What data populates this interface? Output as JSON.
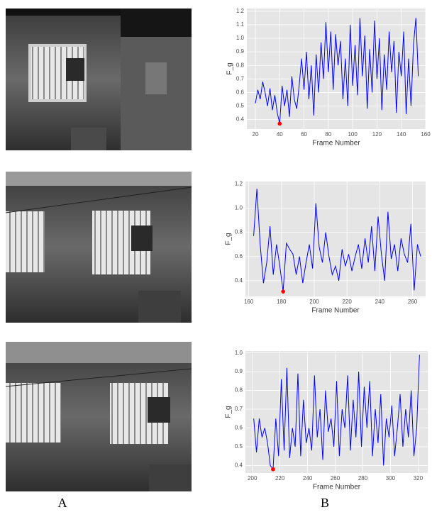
{
  "panel_labels": [
    "A",
    "B"
  ],
  "chart_data": [
    {
      "type": "line",
      "xlabel": "Frame Number",
      "ylabel": "F_g",
      "color": "#0000ff",
      "grid": true,
      "xlim": [
        13,
        160
      ],
      "ylim": [
        0.33,
        1.22
      ],
      "xticks": [
        20,
        40,
        60,
        80,
        100,
        120,
        140,
        160
      ],
      "yticks": [
        0.4,
        0.5,
        0.6,
        0.7,
        0.8,
        0.9,
        {
          "value": 1,
          "label": "1.0"
        },
        1.1,
        1.2
      ],
      "x": [
        20,
        22,
        24,
        26,
        28,
        30,
        32,
        34,
        36,
        38,
        40,
        42,
        44,
        46,
        48,
        50,
        52,
        54,
        56,
        58,
        60,
        62,
        64,
        66,
        68,
        70,
        72,
        74,
        76,
        78,
        80,
        82,
        84,
        86,
        88,
        90,
        92,
        94,
        96,
        98,
        100,
        102,
        104,
        106,
        108,
        110,
        112,
        114,
        116,
        118,
        120,
        122,
        124,
        126,
        128,
        130,
        132,
        134,
        136,
        138,
        140,
        142,
        144,
        146,
        148,
        150,
        152,
        154
      ],
      "values": [
        0.52,
        0.62,
        0.55,
        0.68,
        0.6,
        0.5,
        0.63,
        0.47,
        0.58,
        0.45,
        0.37,
        0.65,
        0.5,
        0.62,
        0.42,
        0.72,
        0.55,
        0.48,
        0.65,
        0.85,
        0.62,
        0.9,
        0.55,
        0.8,
        0.43,
        0.88,
        0.6,
        0.97,
        0.7,
        1.12,
        0.75,
        1.05,
        0.62,
        1.03,
        0.8,
        0.98,
        0.55,
        0.85,
        0.5,
        1.1,
        0.65,
        0.95,
        0.58,
        1.15,
        0.72,
        1.02,
        0.48,
        0.92,
        0.6,
        1.13,
        0.7,
        1,
        0.47,
        0.88,
        0.62,
        1.05,
        0.75,
        0.98,
        0.45,
        0.9,
        0.72,
        1.05,
        0.44,
        0.85,
        0.5,
        0.95,
        1.15,
        0.72
      ],
      "highlight": {
        "x": 40,
        "y": 0.37,
        "color": "#ff0000"
      }
    },
    {
      "type": "line",
      "xlabel": "Frame Number",
      "ylabel": "F_g",
      "color": "#0000ff",
      "grid": true,
      "xlim": [
        158,
        268
      ],
      "ylim": [
        0.27,
        1.22
      ],
      "xticks": [
        160,
        180,
        200,
        220,
        240,
        260
      ],
      "yticks": [
        0.4,
        0.6,
        0.8,
        {
          "value": 1,
          "label": "1.0"
        },
        1.2
      ],
      "x": [
        163,
        165,
        167,
        169,
        171,
        173,
        175,
        177,
        179,
        181,
        183,
        185,
        187,
        189,
        191,
        193,
        195,
        197,
        199,
        201,
        203,
        205,
        207,
        209,
        211,
        213,
        215,
        217,
        219,
        221,
        223,
        225,
        227,
        229,
        231,
        233,
        235,
        237,
        239,
        241,
        243,
        245,
        247,
        249,
        251,
        253,
        255,
        257,
        259,
        261,
        263,
        265
      ],
      "values": [
        0.77,
        1.16,
        0.7,
        0.38,
        0.55,
        0.85,
        0.45,
        0.7,
        0.52,
        0.31,
        0.71,
        0.66,
        0.62,
        0.45,
        0.6,
        0.38,
        0.55,
        0.7,
        0.5,
        1.04,
        0.68,
        0.55,
        0.8,
        0.6,
        0.45,
        0.52,
        0.4,
        0.66,
        0.52,
        0.62,
        0.48,
        0.6,
        0.7,
        0.5,
        0.75,
        0.55,
        0.85,
        0.48,
        0.93,
        0.62,
        0.4,
        0.97,
        0.58,
        0.7,
        0.48,
        0.75,
        0.62,
        0.55,
        0.87,
        0.32,
        0.7,
        0.6
      ],
      "highlight": {
        "x": 181,
        "y": 0.31,
        "color": "#ff0000"
      }
    },
    {
      "type": "line",
      "xlabel": "Frame Number",
      "ylabel": "F_g",
      "color": "#0000ff",
      "grid": true,
      "xlim": [
        195,
        327
      ],
      "ylim": [
        0.36,
        1.01
      ],
      "xticks": [
        200,
        220,
        240,
        260,
        280,
        300,
        320
      ],
      "yticks": [
        0.4,
        0.5,
        0.6,
        0.7,
        0.8,
        0.9,
        {
          "value": 1,
          "label": "1.0"
        }
      ],
      "x": [
        201,
        203,
        205,
        207,
        209,
        211,
        213,
        215,
        217,
        219,
        221,
        223,
        225,
        227,
        229,
        231,
        233,
        235,
        237,
        239,
        241,
        243,
        245,
        247,
        249,
        251,
        253,
        255,
        257,
        259,
        261,
        263,
        265,
        267,
        269,
        271,
        273,
        275,
        277,
        279,
        281,
        283,
        285,
        287,
        289,
        291,
        293,
        295,
        297,
        299,
        301,
        303,
        305,
        307,
        309,
        311,
        313,
        315,
        317,
        319,
        321
      ],
      "values": [
        0.65,
        0.47,
        0.65,
        0.55,
        0.6,
        0.52,
        0.4,
        0.38,
        0.65,
        0.45,
        0.86,
        0.48,
        0.92,
        0.44,
        0.6,
        0.5,
        0.89,
        0.45,
        0.75,
        0.52,
        0.6,
        0.48,
        0.88,
        0.55,
        0.7,
        0.43,
        0.8,
        0.58,
        0.65,
        0.5,
        0.85,
        0.45,
        0.7,
        0.6,
        0.88,
        0.48,
        0.75,
        0.55,
        0.9,
        0.5,
        0.82,
        0.6,
        0.85,
        0.45,
        0.7,
        0.52,
        0.78,
        0.4,
        0.65,
        0.55,
        0.72,
        0.45,
        0.6,
        0.78,
        0.5,
        0.7,
        0.55,
        0.8,
        0.45,
        0.6,
        0.99
      ],
      "highlight": {
        "x": 215,
        "y": 0.38,
        "color": "#ff0000"
      }
    }
  ]
}
